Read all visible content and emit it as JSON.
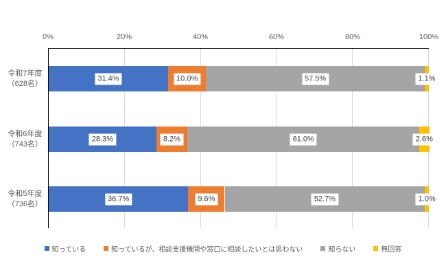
{
  "chart_data": {
    "type": "bar",
    "orientation": "horizontal_stacked",
    "title": "",
    "unit": "%",
    "categories": [
      {
        "line1": "令和7年度",
        "line2": "（628名）"
      },
      {
        "line1": "令和6年度",
        "line2": "（743名）"
      },
      {
        "line1": "令和5年度",
        "line2": "（736名）"
      }
    ],
    "series": [
      {
        "name": "知っている",
        "color": "#4472C4",
        "values": [
          31.4,
          28.3,
          36.7
        ]
      },
      {
        "name": "知っているが、相談支援機関や窓口に相談したいとは思わない",
        "color": "#ED7D31",
        "values": [
          10.0,
          8.2,
          9.6
        ]
      },
      {
        "name": "知らない",
        "color": "#A5A5A5",
        "values": [
          57.5,
          61.0,
          52.7
        ]
      },
      {
        "name": "無回答",
        "color": "#FFC000",
        "values": [
          1.1,
          2.6,
          1.0
        ]
      }
    ],
    "x_axis": {
      "min": 0,
      "max": 100,
      "tick_labels": [
        "0%",
        "20%",
        "40%",
        "60%",
        "80%",
        "100%"
      ],
      "gridlines": true
    },
    "legend": {
      "position": "bottom"
    },
    "value_label_format": "one_decimal_percent"
  },
  "style": {
    "background": "#FFFFFF",
    "axis_line_color": "#262626",
    "gridline_color": "#D9D9D9",
    "tick_label_color": "#595959",
    "category_label_color": "#595959",
    "value_label_text_color": "#404040",
    "value_label_bg": "#FFFFFF"
  }
}
